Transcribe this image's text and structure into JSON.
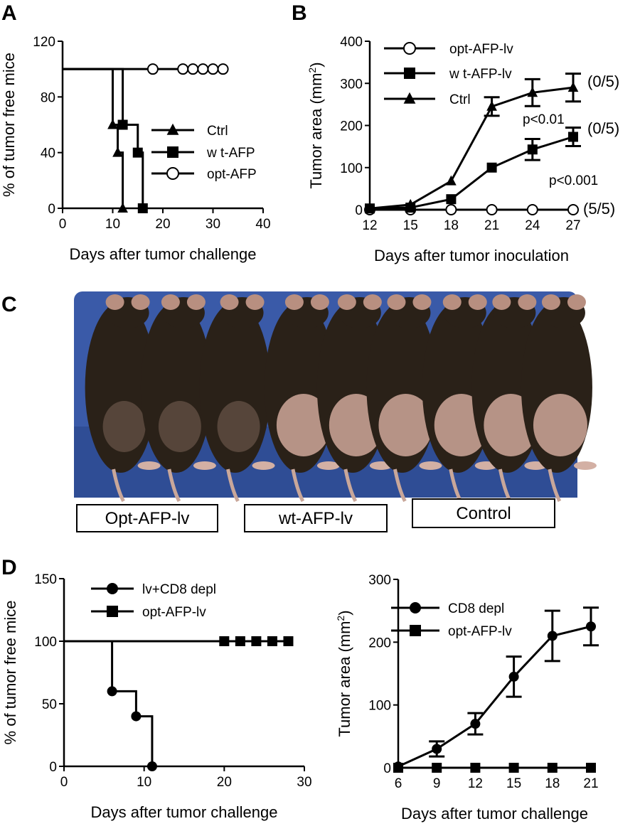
{
  "panels": {
    "a": "A",
    "b": "B",
    "c": "C",
    "d": "D"
  },
  "photo": {
    "labels": [
      "Opt-AFP-lv",
      "wt-AFP-lv",
      "Control"
    ],
    "colors": {
      "background": "#3a5aa8",
      "mouse": "#2a2118",
      "tumor": "#cfa79a"
    }
  },
  "chart_data": [
    {
      "id": "A",
      "type": "line",
      "step": true,
      "title": "",
      "xlabel": "Days after tumor challenge",
      "ylabel": "% of tumor free mice",
      "xlim": [
        0,
        40
      ],
      "ylim": [
        0,
        120
      ],
      "xticks": [
        0,
        10,
        20,
        30,
        40
      ],
      "yticks": [
        0,
        40,
        80,
        120
      ],
      "series": [
        {
          "name": "Ctrl",
          "marker": "triangle",
          "x": [
            0,
            10,
            11,
            12
          ],
          "y": [
            100,
            60,
            40,
            0
          ],
          "marked": [
            false,
            true,
            true,
            true
          ]
        },
        {
          "name": "w t-AFP",
          "marker": "square",
          "x": [
            0,
            12,
            15,
            16
          ],
          "y": [
            100,
            60,
            40,
            0
          ],
          "marked": [
            false,
            true,
            true,
            true
          ]
        },
        {
          "name": "opt-AFP",
          "marker": "circle-open",
          "x": [
            0,
            18,
            22,
            24,
            26,
            28,
            30,
            32
          ],
          "y": [
            100,
            100,
            100,
            100,
            100,
            100,
            100,
            100
          ],
          "marked": [
            false,
            true,
            false,
            true,
            true,
            true,
            true,
            true
          ]
        }
      ],
      "legend": "right"
    },
    {
      "id": "B",
      "type": "line",
      "title": "",
      "xlabel": "Days after tumor inoculation",
      "ylabel": "Tumor area (mm",
      "ylabel_sup": "2",
      "ylabel_end": ")",
      "xlim": [
        12,
        27
      ],
      "ylim": [
        0,
        400
      ],
      "xticks": [
        12,
        15,
        18,
        21,
        24,
        27
      ],
      "yticks": [
        0,
        100,
        200,
        300,
        400
      ],
      "series": [
        {
          "name": "opt-AFP-lv",
          "marker": "circle-open",
          "x": [
            12,
            15,
            18,
            21,
            24,
            27
          ],
          "y": [
            0,
            0,
            0,
            0,
            0,
            0
          ],
          "err": [
            0,
            0,
            0,
            0,
            0,
            0
          ]
        },
        {
          "name": "w t-AFP-lv",
          "marker": "square",
          "x": [
            12,
            15,
            18,
            21,
            24,
            27
          ],
          "y": [
            3,
            5,
            25,
            100,
            143,
            173
          ],
          "err": [
            0,
            0,
            0,
            0,
            25,
            22
          ]
        },
        {
          "name": "Ctrl",
          "marker": "triangle",
          "x": [
            12,
            15,
            18,
            21,
            24,
            27
          ],
          "y": [
            3,
            12,
            68,
            245,
            278,
            290
          ],
          "err": [
            0,
            0,
            0,
            22,
            32,
            33
          ]
        }
      ],
      "annotations": [
        "(0/5)",
        "(0/5)",
        "(5/5)",
        "p<0.01",
        "p<0.001"
      ],
      "legend": "top-left"
    },
    {
      "id": "D-left",
      "type": "line",
      "step": true,
      "title": "",
      "xlabel": "Days after tumor challenge",
      "ylabel": "% of tumor free mice",
      "xlim": [
        0,
        30
      ],
      "ylim": [
        0,
        150
      ],
      "xticks": [
        0,
        10,
        20,
        30
      ],
      "yticks": [
        0,
        50,
        100,
        150
      ],
      "series": [
        {
          "name": "lv+CD8 depl",
          "marker": "circle",
          "x": [
            0,
            6,
            9,
            11
          ],
          "y": [
            100,
            60,
            40,
            0
          ],
          "marked": [
            false,
            true,
            true,
            true
          ]
        },
        {
          "name": "opt-AFP-lv",
          "marker": "square",
          "x": [
            0,
            20,
            22,
            24,
            26,
            28
          ],
          "y": [
            100,
            100,
            100,
            100,
            100,
            100
          ],
          "marked": [
            false,
            true,
            true,
            true,
            true,
            true
          ]
        }
      ],
      "legend": "top"
    },
    {
      "id": "D-right",
      "type": "line",
      "title": "",
      "xlabel": "Days after tumor challenge",
      "ylabel": "Tumor area (mm",
      "ylabel_sup": "2",
      "ylabel_end": ")",
      "xlim": [
        6,
        21
      ],
      "ylim": [
        0,
        300
      ],
      "xticks": [
        6,
        9,
        12,
        15,
        18,
        21
      ],
      "yticks": [
        0,
        100,
        200,
        300
      ],
      "series": [
        {
          "name": "CD8 depl",
          "marker": "circle",
          "x": [
            6,
            9,
            12,
            15,
            18,
            21
          ],
          "y": [
            2,
            30,
            70,
            145,
            210,
            225
          ],
          "err": [
            0,
            12,
            17,
            32,
            40,
            30
          ]
        },
        {
          "name": "opt-AFP-lv",
          "marker": "square",
          "x": [
            6,
            9,
            12,
            15,
            18,
            21
          ],
          "y": [
            0,
            0,
            0,
            0,
            0,
            0
          ],
          "err": [
            0,
            0,
            0,
            0,
            0,
            0
          ]
        }
      ],
      "legend": "top-left"
    }
  ]
}
